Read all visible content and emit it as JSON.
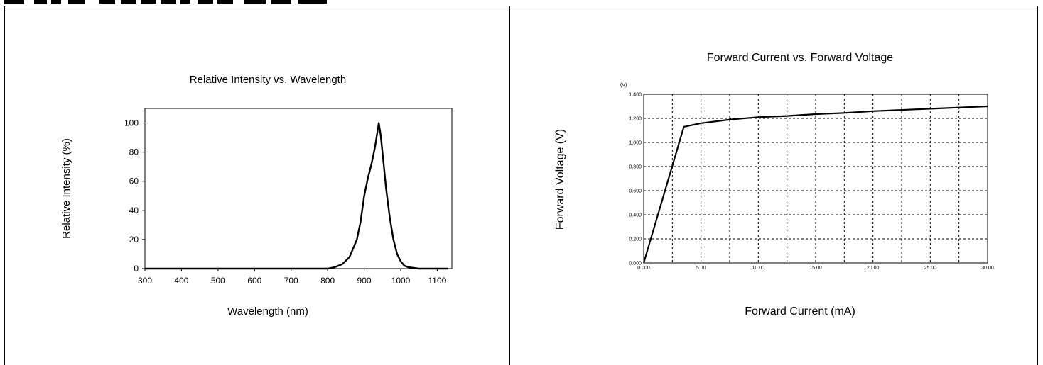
{
  "chart_data": [
    {
      "type": "line",
      "title": "Relative Intensity vs. Wavelength",
      "xlabel": "Wavelength (nm)",
      "ylabel": "Relative Intensity (%)",
      "xlim": [
        300,
        1140
      ],
      "ylim": [
        0,
        110
      ],
      "x_ticks": [
        300,
        400,
        500,
        600,
        700,
        800,
        900,
        1000,
        1100
      ],
      "y_ticks": [
        0,
        20,
        40,
        60,
        80,
        100
      ],
      "grid": false,
      "series": [
        {
          "x": [
            300,
            400,
            500,
            600,
            700,
            800,
            820,
            840,
            860,
            880,
            890,
            900,
            910,
            920,
            930,
            940,
            945,
            950,
            960,
            970,
            980,
            990,
            1000,
            1010,
            1020,
            1050,
            1100,
            1130
          ],
          "y": [
            0,
            0,
            0,
            0,
            0,
            0,
            1,
            3,
            8,
            20,
            32,
            50,
            62,
            72,
            84,
            100,
            92,
            80,
            55,
            35,
            20,
            10,
            5,
            2,
            1,
            0,
            0,
            0
          ]
        }
      ]
    },
    {
      "type": "line",
      "title": "Forward Current vs. Forward Voltage",
      "xlabel": "Forward Current (mA)",
      "ylabel": "Forward Voltage (V)",
      "y_unit_label": "(V)",
      "xlim": [
        0,
        30
      ],
      "ylim": [
        0,
        1.4
      ],
      "x_tick_labels": [
        "0.000",
        "5.00",
        "10.00",
        "15.00",
        "20.00",
        "25.00",
        "30.00"
      ],
      "x_tick_values": [
        0,
        5,
        10,
        15,
        20,
        25,
        30
      ],
      "y_tick_labels": [
        "0.000",
        "0.200",
        "0.400",
        "0.600",
        "0.800",
        "1.000",
        "1.200",
        "1.400"
      ],
      "y_tick_values": [
        0,
        0.2,
        0.4,
        0.6,
        0.8,
        1.0,
        1.2,
        1.4
      ],
      "minor_x_lines": [
        2.5,
        7.5,
        12.5,
        17.5,
        22.5,
        27.5
      ],
      "grid": true,
      "series": [
        {
          "x": [
            0,
            3.5,
            5,
            7.5,
            10,
            12.5,
            15,
            17.5,
            20,
            22.5,
            25,
            27.5,
            30
          ],
          "y": [
            0,
            1.13,
            1.16,
            1.19,
            1.21,
            1.22,
            1.235,
            1.245,
            1.26,
            1.27,
            1.28,
            1.29,
            1.3
          ]
        }
      ]
    }
  ]
}
